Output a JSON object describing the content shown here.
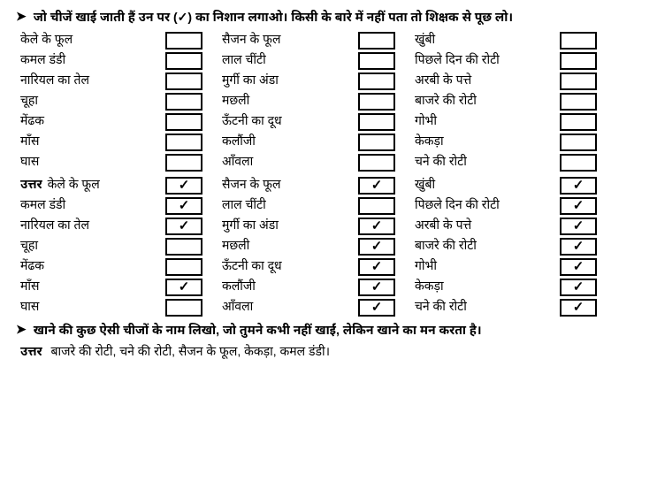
{
  "bullet_symbol": "➤",
  "check_symbol": "✓",
  "instruction1": "जो चीजें खाई जाती हैं उन पर (✓) का निशान लगाओ। किसी के बारे में नहीं पता तो शिक्षक से पूछ लो।",
  "uttar_label": "उत्तर",
  "question_rows": [
    {
      "c1": "केले के फूल",
      "c2": "सैजन के फूल",
      "c3": "खुंबी"
    },
    {
      "c1": "कमल डंडी",
      "c2": "लाल चींटी",
      "c3": "पिछले दिन की रोटी"
    },
    {
      "c1": "नारियल का तेल",
      "c2": "मुर्गी का अंडा",
      "c3": "अरबी के पत्ते"
    },
    {
      "c1": "चूहा",
      "c2": "मछली",
      "c3": "बाजरे की रोटी"
    },
    {
      "c1": "मेंढक",
      "c2": "ऊँटनी का दूध",
      "c3": "गोभी"
    },
    {
      "c1": "माँस",
      "c2": "कलौंजी",
      "c3": "केकड़ा"
    },
    {
      "c1": "घास",
      "c2": "आँवला",
      "c3": "चने की रोटी"
    }
  ],
  "answer_rows": [
    {
      "c1": "केले के फूल",
      "k1": true,
      "c2": "सैजन के फूल",
      "k2": true,
      "c3": "खुंबी",
      "k3": true
    },
    {
      "c1": "कमल डंडी",
      "k1": true,
      "c2": "लाल चींटी",
      "k2": false,
      "c3": "पिछले दिन की रोटी",
      "k3": true
    },
    {
      "c1": "नारियल का तेल",
      "k1": true,
      "c2": "मुर्गी का अंडा",
      "k2": true,
      "c3": "अरबी के पत्ते",
      "k3": true
    },
    {
      "c1": "चूहा",
      "k1": false,
      "c2": "मछली",
      "k2": true,
      "c3": "बाजरे की रोटी",
      "k3": true
    },
    {
      "c1": "मेंढक",
      "k1": false,
      "c2": "ऊँटनी का दूध",
      "k2": true,
      "c3": "गोभी",
      "k3": true
    },
    {
      "c1": "माँस",
      "k1": true,
      "c2": "कलौंजी",
      "k2": true,
      "c3": "केकड़ा",
      "k3": true
    },
    {
      "c1": "घास",
      "k1": false,
      "c2": "आँवला",
      "k2": true,
      "c3": "चने की रोटी",
      "k3": true
    }
  ],
  "instruction2": "खाने की कुछ ऐसी चीजों के नाम लिखो, जो तुमने कभी नहीं खाईं, लेकिन खाने का मन करता है।",
  "answer2": "बाजरे की रोटी, चने की रोटी, सैजन के फूल, केकड़ा, कमल डंडी।"
}
